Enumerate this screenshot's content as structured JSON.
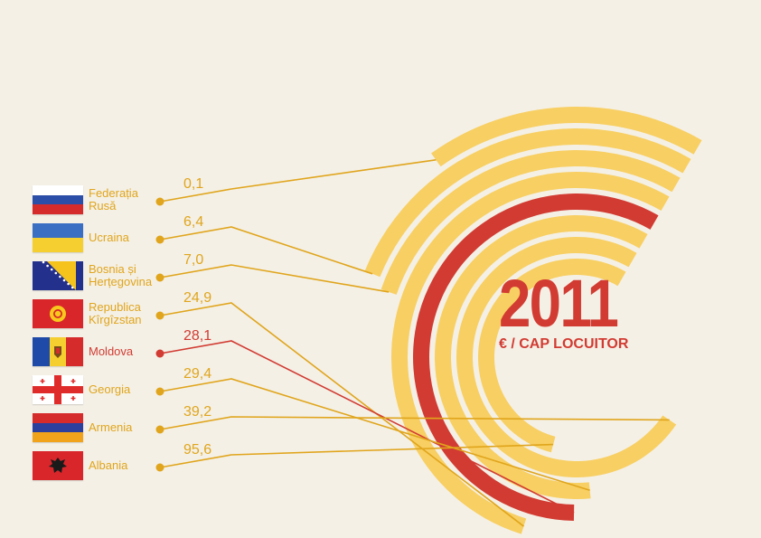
{
  "colors": {
    "background": "#f4f0e6",
    "bar": "#f8cf62",
    "highlight": "#d23b32",
    "line": "#e0a51c",
    "dot": "#e0a51c"
  },
  "title": {
    "year": "2011",
    "unit": "€ / CAP LOCUITOR"
  },
  "chart_data": {
    "type": "radial-bar",
    "title": "2011",
    "subtitle": "€ / CAP LOCUITOR",
    "highlight": "Moldova",
    "categories": [
      "Federația Rusă",
      "Ucraina",
      "Bosnia și Herțegovina",
      "Republica Kîrgîzstan",
      "Moldova",
      "Georgia",
      "Armenia",
      "Albania"
    ],
    "values": [
      0.1,
      6.4,
      7.0,
      24.9,
      28.1,
      29.4,
      39.2,
      95.6
    ],
    "value_labels": [
      "0,1",
      "6,4",
      "7,0",
      "24,9",
      "28,1",
      "29,4",
      "39,2",
      "95,6"
    ],
    "items": [
      {
        "name_lines": [
          "Federația",
          "Rusă"
        ],
        "value": 0.1,
        "value_label": "0,1",
        "flag": "russia-flag-icon"
      },
      {
        "name_lines": [
          "Ucraina"
        ],
        "value": 6.4,
        "value_label": "6,4",
        "flag": "ukraine-flag-icon"
      },
      {
        "name_lines": [
          "Bosnia și",
          "Herțegovina"
        ],
        "value": 7.0,
        "value_label": "7,0",
        "flag": "bosnia-flag-icon"
      },
      {
        "name_lines": [
          "Republica",
          "Kîrgîzstan"
        ],
        "value": 24.9,
        "value_label": "24,9",
        "flag": "kyrgyzstan-flag-icon"
      },
      {
        "name_lines": [
          "Moldova"
        ],
        "value": 28.1,
        "value_label": "28,1",
        "flag": "moldova-flag-icon"
      },
      {
        "name_lines": [
          "Georgia"
        ],
        "value": 29.4,
        "value_label": "29,4",
        "flag": "georgia-flag-icon"
      },
      {
        "name_lines": [
          "Armenia"
        ],
        "value": 39.2,
        "value_label": "39,2",
        "flag": "armenia-flag-icon"
      },
      {
        "name_lines": [
          "Albania"
        ],
        "value": 95.6,
        "value_label": "95,6",
        "flag": "albania-flag-icon"
      }
    ]
  }
}
